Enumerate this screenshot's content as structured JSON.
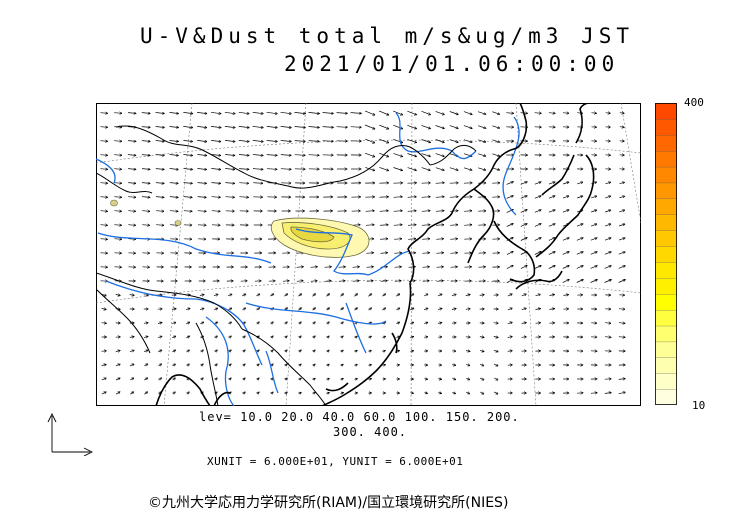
{
  "title": {
    "line1": "U-V&Dust total m/s&ug/m3 JST",
    "line2": "2021/01/01.06:00:00"
  },
  "colorbar": {
    "max_label": "400",
    "min_label": "10",
    "colors": [
      "#ffffe0",
      "#ffffc8",
      "#ffffb0",
      "#ffff98",
      "#ffff70",
      "#ffff40",
      "#ffff00",
      "#fff000",
      "#ffe800",
      "#ffd800",
      "#ffc800",
      "#ffb800",
      "#ffa800",
      "#ff9800",
      "#ff8800",
      "#ff7800",
      "#ff6800",
      "#ff5800",
      "#ff4800"
    ]
  },
  "levels": {
    "line1": "lev= 10.0 20.0 40.0 60.0 100. 150. 200.",
    "line2": "300. 400."
  },
  "units": "XUNIT = 6.000E+01, YUNIT = 6.000E+01",
  "copyright": "©九州大学応用力学研究所(RIAM)/国立環境研究所(NIES)",
  "colors": {
    "coastline": "#000000",
    "river": "#1e6fe0",
    "dust_outer": "#fff8b0",
    "dust_mid": "#f8ee70",
    "dust_core": "#e8d840",
    "dust_contour": "#6e6e3a"
  }
}
